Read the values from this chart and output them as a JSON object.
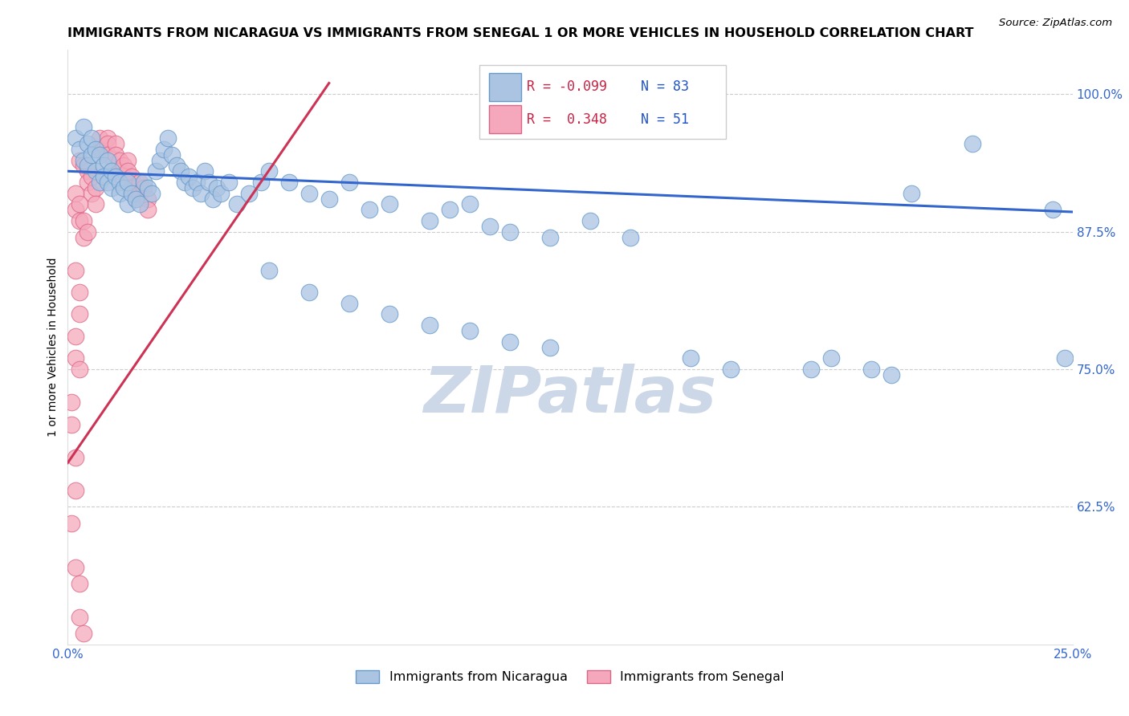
{
  "title": "IMMIGRANTS FROM NICARAGUA VS IMMIGRANTS FROM SENEGAL 1 OR MORE VEHICLES IN HOUSEHOLD CORRELATION CHART",
  "source": "Source: ZipAtlas.com",
  "ylabel": "1 or more Vehicles in Household",
  "xlim": [
    0.0,
    0.25
  ],
  "ylim": [
    0.5,
    1.04
  ],
  "yticks": [
    0.625,
    0.75,
    0.875,
    1.0
  ],
  "ytick_labels": [
    "62.5%",
    "75.0%",
    "87.5%",
    "100.0%"
  ],
  "xticks": [
    0.0,
    0.05,
    0.1,
    0.15,
    0.2,
    0.25
  ],
  "xtick_labels": [
    "0.0%",
    "",
    "",
    "",
    "",
    "25.0%"
  ],
  "nicaragua_R": -0.099,
  "nicaragua_N": 83,
  "senegal_R": 0.348,
  "senegal_N": 51,
  "nicaragua_color": "#aac4e2",
  "senegal_color": "#f5a8bc",
  "nicaragua_edge_color": "#6699cc",
  "senegal_edge_color": "#dd6688",
  "trendline_nicaragua_color": "#3366cc",
  "trendline_senegal_color": "#cc3355",
  "background_color": "#ffffff",
  "grid_color": "#cccccc",
  "watermark_color": "#ccd8e8",
  "title_fontsize": 11.5,
  "legend_R_color": "#cc2244",
  "legend_N_color": "#2255cc",
  "nic_trendline_x": [
    0.0,
    0.25
  ],
  "nic_trendline_y": [
    0.93,
    0.893
  ],
  "sen_trendline_x": [
    0.0,
    0.065
  ],
  "sen_trendline_y": [
    0.665,
    1.01
  ]
}
